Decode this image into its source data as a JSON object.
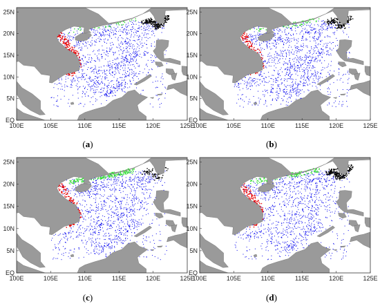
{
  "chart_data": {
    "type": "scatter",
    "description_free": true,
    "x_ticks": [
      "100E",
      "105E",
      "110E",
      "115E",
      "120E",
      "125E"
    ],
    "y_ticks": [
      "EQ",
      "5N",
      "10N",
      "15N",
      "20N",
      "25N"
    ],
    "xlim": [
      100,
      125
    ],
    "ylim": [
      0,
      26
    ],
    "grid": false,
    "colors": {
      "land": "#9a9a9a",
      "sea": "#ffffff",
      "black": "#000000",
      "red": "#e60000",
      "green": "#33dd33",
      "blue": "#0000ee"
    },
    "panels": [
      {
        "label": "a",
        "layer_weights": {
          "blue": 0.78,
          "red": 0.08,
          "green": 0.02,
          "black": 0.12
        }
      },
      {
        "label": "b",
        "layer_weights": {
          "blue": 0.84,
          "red": 0.05,
          "green": 0.03,
          "black": 0.08
        }
      },
      {
        "label": "c",
        "layer_weights": {
          "blue": 0.8,
          "red": 0.06,
          "green": 0.1,
          "black": 0.04
        }
      },
      {
        "label": "d",
        "layer_weights": {
          "blue": 0.76,
          "red": 0.06,
          "green": 0.06,
          "black": 0.12
        }
      }
    ]
  }
}
